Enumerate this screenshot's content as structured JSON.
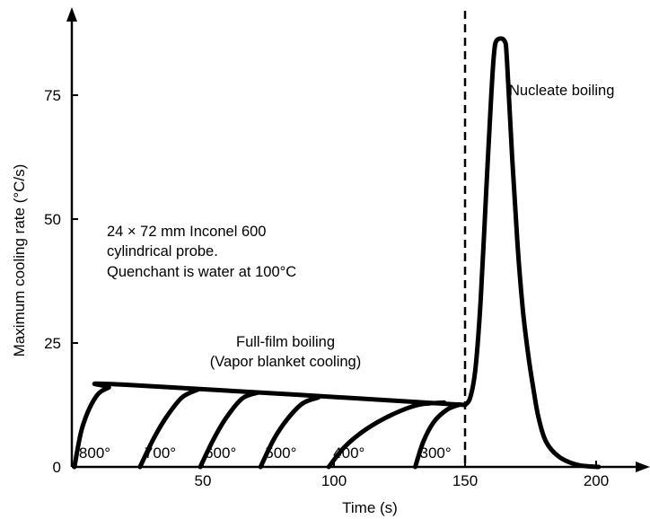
{
  "chart_data": {
    "type": "line",
    "xlabel": "Time (s)",
    "ylabel": "Maximum cooling rate (°C/s)",
    "xlim": [
      0,
      215
    ],
    "ylim": [
      0,
      92
    ],
    "x_ticks": [
      {
        "value": 50,
        "label": "50"
      },
      {
        "value": 100,
        "label": "100"
      },
      {
        "value": 150,
        "label": "150"
      },
      {
        "value": 200,
        "label": "200"
      }
    ],
    "y_ticks": [
      {
        "value": 0,
        "label": "0"
      },
      {
        "value": 25,
        "label": "25"
      },
      {
        "value": 50,
        "label": "50"
      },
      {
        "value": 75,
        "label": "75"
      }
    ],
    "grid": false,
    "vertical_line": {
      "x": 150,
      "style": "dashed"
    },
    "series": [
      {
        "label": "800°",
        "points": [
          [
            1,
            0
          ],
          [
            4,
            8
          ],
          [
            9,
            14
          ],
          [
            14,
            16
          ],
          [
            20,
            16.6
          ],
          [
            150,
            12.5
          ]
        ]
      },
      {
        "label": "700°",
        "points": [
          [
            26,
            0
          ],
          [
            31,
            5.5
          ],
          [
            36,
            10
          ],
          [
            42,
            14
          ],
          [
            48,
            15.6
          ]
        ]
      },
      {
        "label": "600°",
        "points": [
          [
            49,
            0
          ],
          [
            54,
            5.5
          ],
          [
            59,
            10
          ],
          [
            65,
            13.8
          ],
          [
            71,
            15
          ]
        ]
      },
      {
        "label": "500°",
        "points": [
          [
            72,
            0
          ],
          [
            77,
            5.5
          ],
          [
            82,
            9.5
          ],
          [
            88,
            12.8
          ],
          [
            94,
            14
          ]
        ]
      },
      {
        "label": "400°",
        "points": [
          [
            98,
            0
          ],
          [
            104,
            4
          ],
          [
            112,
            7.5
          ],
          [
            122,
            10.5
          ],
          [
            132,
            12.5
          ],
          [
            142,
            13
          ]
        ]
      },
      {
        "label": "300°",
        "points": [
          [
            131,
            0
          ],
          [
            134,
            5
          ],
          [
            138,
            9
          ],
          [
            143,
            11.5
          ],
          [
            148,
            12.6
          ]
        ]
      },
      {
        "label": "",
        "points": [
          [
            150,
            12.5
          ],
          [
            152,
            14
          ],
          [
            154,
            20
          ],
          [
            156,
            34
          ],
          [
            158,
            55
          ],
          [
            160,
            75
          ],
          [
            161,
            83
          ],
          [
            162,
            86
          ],
          [
            165,
            86
          ],
          [
            166,
            82
          ],
          [
            168,
            62
          ],
          [
            170,
            45
          ],
          [
            172,
            32
          ],
          [
            174,
            23
          ],
          [
            176,
            16
          ],
          [
            178,
            10
          ],
          [
            181,
            5
          ],
          [
            186,
            2
          ],
          [
            193,
            0.4
          ],
          [
            201,
            0
          ]
        ]
      }
    ],
    "annotations": {
      "nucleate": "Nucleate boiling",
      "probe_line1": "24 × 72 mm Inconel 600",
      "probe_line2": "cylindrical probe.",
      "probe_line3": "Quenchant is water at 100°C",
      "film_line1": "Full-film boiling",
      "film_line2": "(Vapor blanket cooling)"
    }
  }
}
